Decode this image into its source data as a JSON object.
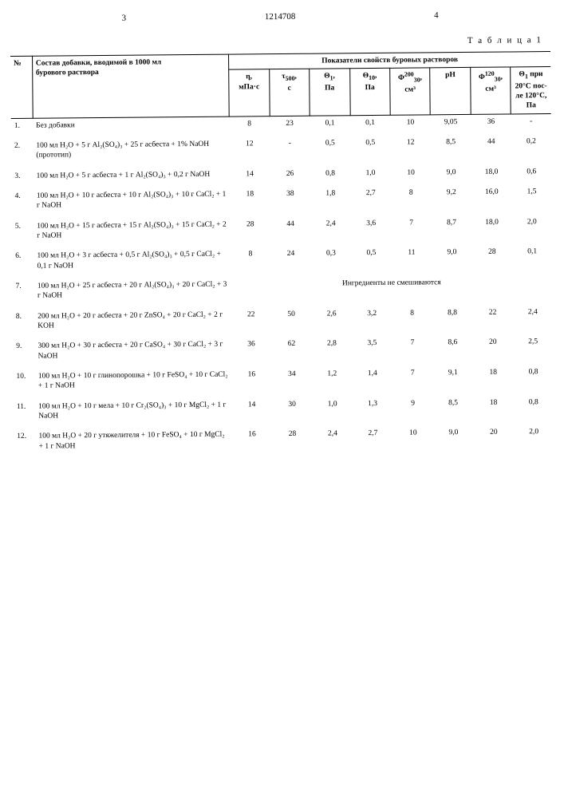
{
  "header": {
    "left_num": "3",
    "center_num": "1214708",
    "right_num": "4",
    "table_label": "Т а б л и ц а 1"
  },
  "columns": {
    "num": "№",
    "desc_l1": "Состав добавки, вводимой в 1000 мл",
    "desc_l2": "бурового раствора",
    "props_header": "Показатели свойств буровых растворов",
    "c1": "η,\nмПа·с",
    "c2": "τ₅₀₀,\nс",
    "c3": "Θ₁,\nПа",
    "c4": "Θ₁₀,\nПа",
    "c5": "Φ₃₀²⁰⁰,\nсм³",
    "c6": "pH",
    "c7": "Φ₃₀¹²⁰,\nсм³",
    "c8": "Θ₁ при 20°С после 120°С, Па"
  },
  "rows": [
    {
      "n": "1.",
      "desc": "Без добавки",
      "d": [
        "8",
        "23",
        "0,1",
        "0,1",
        "10",
        "9,05",
        "36",
        "-"
      ]
    },
    {
      "n": "2.",
      "desc": "100 мл H₂O + 5 г Al₂(SO₄)₃ + 25 г асбеста + 1% NaOH (прототип)",
      "d": [
        "12",
        "-",
        "0,5",
        "0,5",
        "12",
        "8,5",
        "44",
        "0,2"
      ]
    },
    {
      "n": "3.",
      "desc": "100 мл H₂O + 5 г асбеста + 1 г Al₂(SO₄)₃ + 0,2 г NaOH",
      "d": [
        "14",
        "26",
        "0,8",
        "1,0",
        "10",
        "9,0",
        "18,0",
        "0,6"
      ]
    },
    {
      "n": "4.",
      "desc": "100 мл H₂O + 10 г асбеста + 10 г Al₂(SO₄)₃ + 10 г CaCl₂ + 1 г NaOH",
      "d": [
        "18",
        "38",
        "1,8",
        "2,7",
        "8",
        "9,2",
        "16,0",
        "1,5"
      ]
    },
    {
      "n": "5.",
      "desc": "100 мл H₂O + 15 г асбеста + 15 г Al₂(SO₄)₃ + 15 г CaCl₂ + 2 г NaOH",
      "d": [
        "28",
        "44",
        "2,4",
        "3,6",
        "7",
        "8,7",
        "18,0",
        "2,0"
      ]
    },
    {
      "n": "6.",
      "desc": "100 мл H₂O + 3 г асбеста + 0,5 г Al₂(SO₄)₃ + 0,5 г CaCl₂ + 0,1 г NaOH",
      "d": [
        "8",
        "24",
        "0,3",
        "0,5",
        "11",
        "9,0",
        "28",
        "0,1"
      ]
    },
    {
      "n": "7.",
      "desc": "100 мл H₂O + 25 г асбеста + 20 г Al₂(SO₄)₃ + 20 г CaCl₂ + 3 г NaOH",
      "span": "Ингредиенты не смешиваются"
    },
    {
      "n": "8.",
      "desc": "200 мл H₂O + 20 г асбеста + 20 г ZnSO₄ + 20 г CaCl₂ + 2 г KOH",
      "d": [
        "22",
        "50",
        "2,6",
        "3,2",
        "8",
        "8,8",
        "22",
        "2,4"
      ]
    },
    {
      "n": "9.",
      "desc": "300 мл H₂O + 30 г асбеста + 20 г CaSO₄ + 30 г CaCl₂ + 3 г NaOH",
      "d": [
        "36",
        "62",
        "2,8",
        "3,5",
        "7",
        "8,6",
        "20",
        "2,5"
      ]
    },
    {
      "n": "10.",
      "desc": "100 мл H₂O + 10 г глинопорошка + 10 г FeSO₄ + 10 г CaCl₂ + 1 г NaOH",
      "d": [
        "16",
        "34",
        "1,2",
        "1,4",
        "7",
        "9,1",
        "18",
        "0,8"
      ]
    },
    {
      "n": "11.",
      "desc": "100 мл H₂O + 10 г мела + 10 г Cr₂(SO₄)₃ + 10 г MgCl₂ + 1 г NaOH",
      "d": [
        "14",
        "30",
        "1,0",
        "1,3",
        "9",
        "8,5",
        "18",
        "0,8"
      ]
    },
    {
      "n": "12.",
      "desc": "100 мл H₂O + 20 г утяжелителя + 10 г FeSO₄ + 10 г MgCl₂ + 1 г NaOH",
      "d": [
        "16",
        "28",
        "2,4",
        "2,7",
        "10",
        "9,0",
        "20",
        "2,0"
      ]
    }
  ]
}
